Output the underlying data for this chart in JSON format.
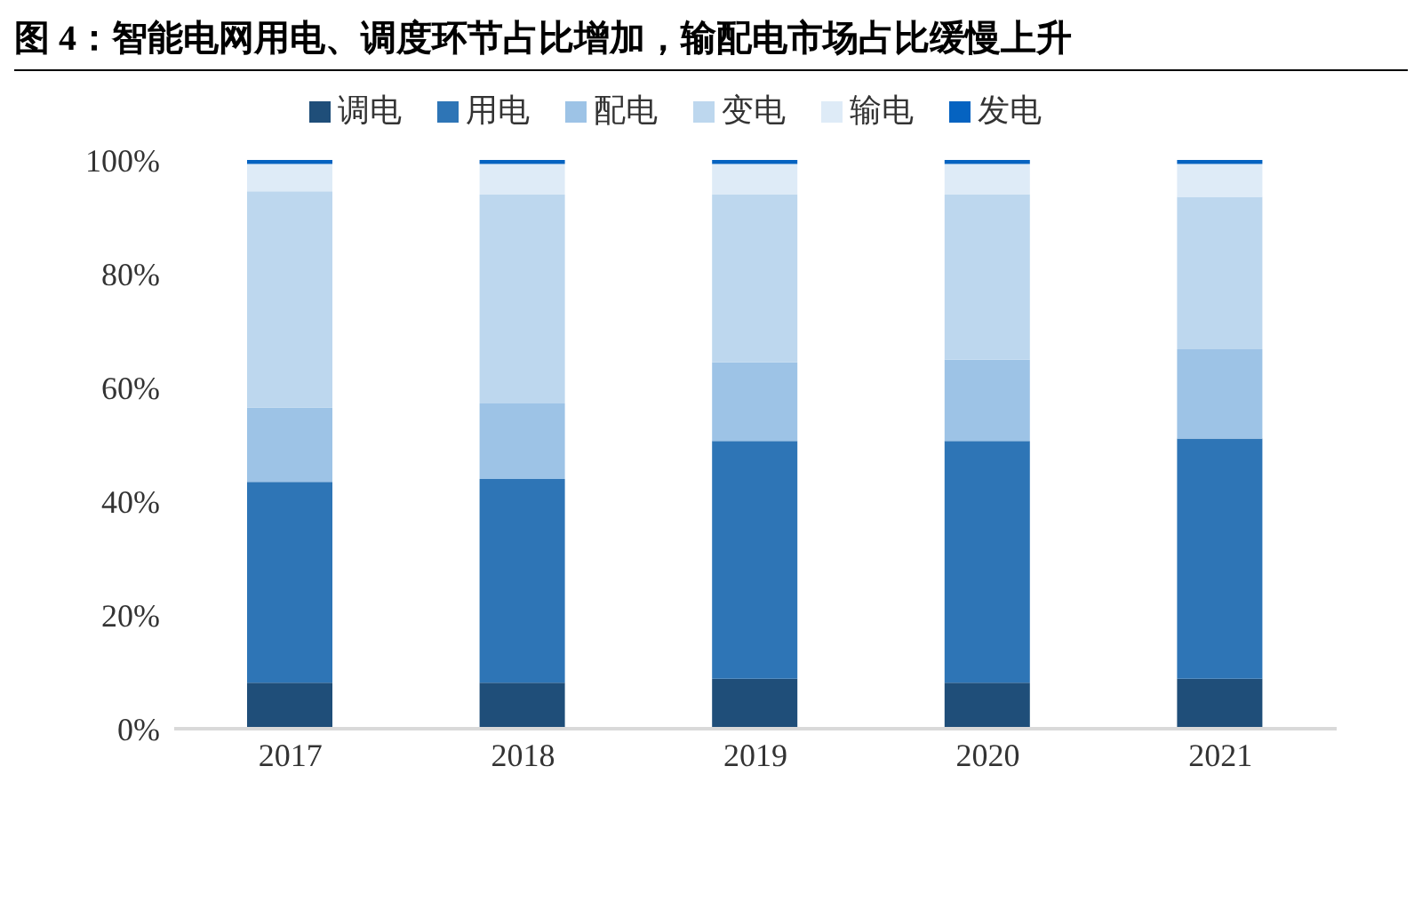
{
  "chart_data": {
    "type": "bar",
    "title": "图 4：智能电网用电、调度环节占比增加，输配电市场占比缓慢上升",
    "categories": [
      "2017",
      "2018",
      "2019",
      "2020",
      "2021"
    ],
    "stacked": true,
    "series": [
      {
        "name": "调电",
        "color": "#1f4e79",
        "values": [
          8.1,
          8.1,
          8.8,
          8.1,
          8.8
        ]
      },
      {
        "name": "用电",
        "color": "#2e75b6",
        "values": [
          35.3,
          35.8,
          41.8,
          42.5,
          42.2
        ]
      },
      {
        "name": "配电",
        "color": "#9dc3e6",
        "values": [
          13.1,
          13.3,
          13.8,
          14.3,
          15.7
        ]
      },
      {
        "name": "变电",
        "color": "#bdd7ee",
        "values": [
          38.0,
          36.7,
          29.5,
          29.0,
          26.8
        ]
      },
      {
        "name": "输电",
        "color": "#deebf7",
        "values": [
          4.8,
          5.4,
          5.4,
          5.4,
          5.8
        ]
      },
      {
        "name": "发电",
        "color": "#0563c1",
        "values": [
          0.7,
          0.7,
          0.7,
          0.7,
          0.7
        ]
      }
    ],
    "ylim": [
      0,
      100
    ],
    "yticks": [
      {
        "value": 0,
        "label": "0%"
      },
      {
        "value": 20,
        "label": "20%"
      },
      {
        "value": 40,
        "label": "40%"
      },
      {
        "value": 60,
        "label": "60%"
      },
      {
        "value": 80,
        "label": "80%"
      },
      {
        "value": 100,
        "label": "100%"
      }
    ],
    "grid": false,
    "legend": "top"
  }
}
